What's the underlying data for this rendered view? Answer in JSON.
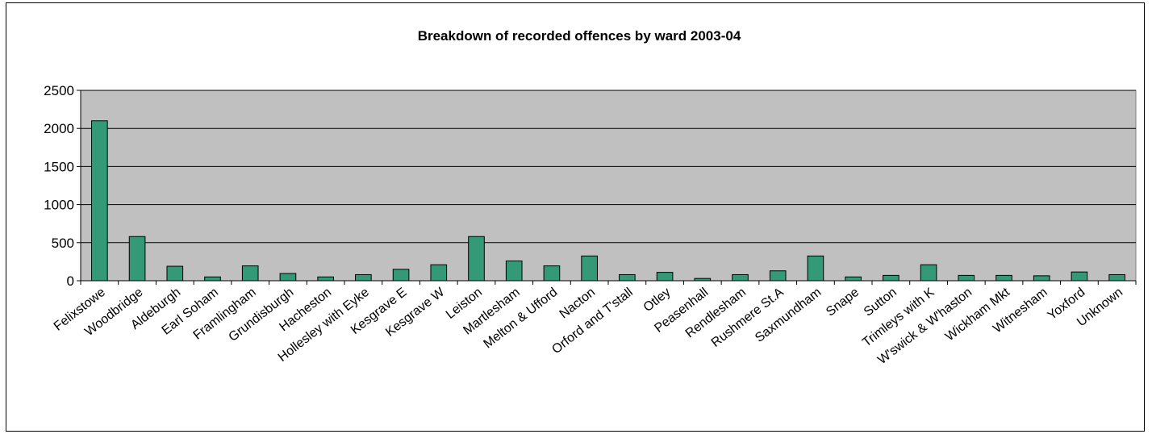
{
  "chart_data": {
    "type": "bar",
    "title": "Breakdown of recorded offences by ward 2003-04",
    "xlabel": "",
    "ylabel": "",
    "ylim": [
      0,
      2500
    ],
    "yticks": [
      0,
      500,
      1000,
      1500,
      2000,
      2500
    ],
    "grid": true,
    "legend": "none",
    "categories": [
      "Felixstowe",
      "Woodbridge",
      "Aldeburgh",
      "Earl Soham",
      "Framlingham",
      "Grundisburgh",
      "Hacheston",
      "Hollesley with Eyke",
      "Kesgrave E",
      "Kesgrave W",
      "Leiston",
      "Martlesham",
      "Melton & Ufford",
      "Nacton",
      "Orford and T'stall",
      "Otley",
      "Peasenhall",
      "Rendlesham",
      "Rushmere St.A",
      "Saxmundham",
      "Snape",
      "Sutton",
      "Trimleys with K",
      "W'swick & W'haston",
      "Wickham Mkt",
      "Witnesham",
      "Yoxford",
      "Unknown"
    ],
    "values": [
      2100,
      580,
      190,
      50,
      195,
      95,
      50,
      80,
      150,
      210,
      580,
      260,
      195,
      325,
      80,
      110,
      30,
      80,
      130,
      325,
      50,
      70,
      210,
      70,
      70,
      65,
      115,
      80
    ],
    "colors": {
      "bar_fill": "#339977",
      "bar_stroke": "#000000",
      "plot_bg": "#c0c0c0",
      "grid": "#000000"
    }
  }
}
